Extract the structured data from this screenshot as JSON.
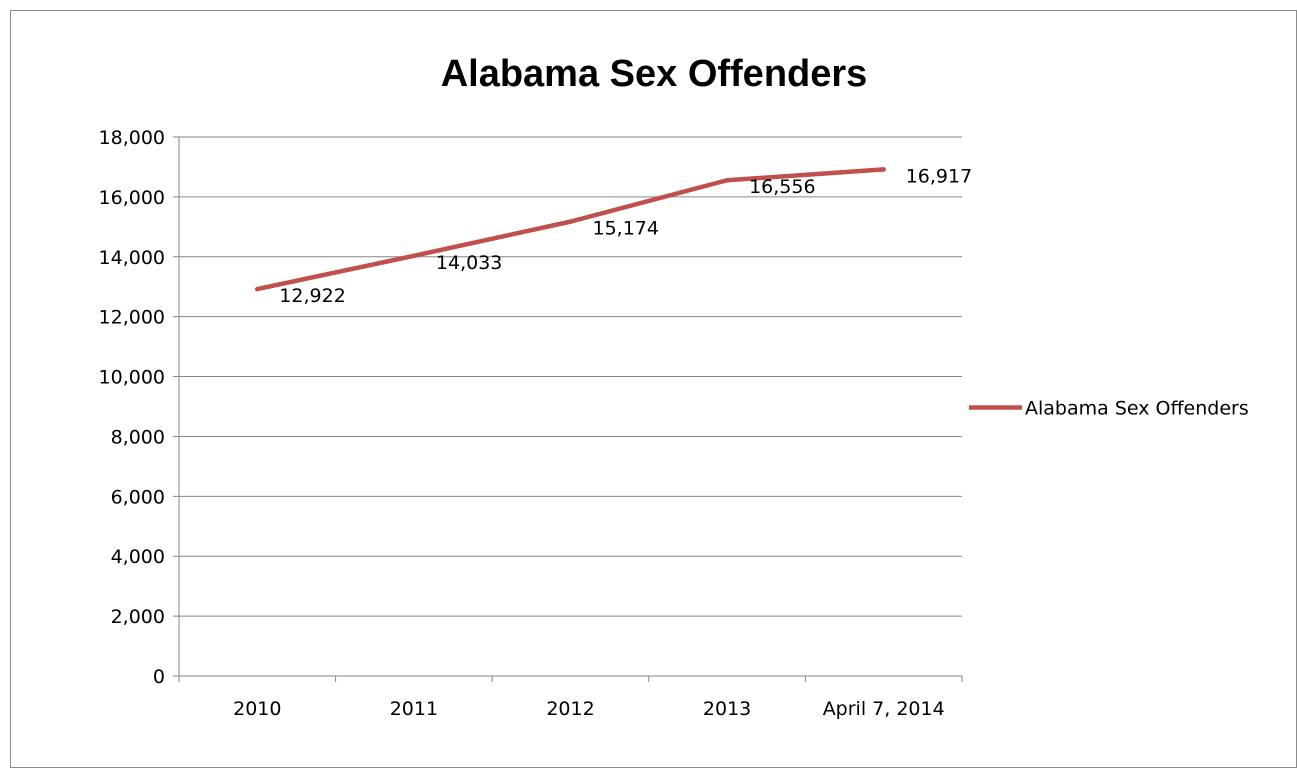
{
  "chart_data": {
    "type": "line",
    "title": "Alabama Sex Offenders",
    "categories": [
      "2010",
      "2011",
      "2012",
      "2013",
      "April 7, 2014"
    ],
    "series": [
      {
        "name": "Alabama Sex Offenders",
        "values": [
          12922,
          14033,
          15174,
          16556,
          16917
        ],
        "data_labels": [
          "12,922",
          "14,033",
          "15,174",
          "16,556",
          "16,917"
        ],
        "color": "#c0504d"
      }
    ],
    "y_ticks": [
      "0",
      "2,000",
      "4,000",
      "6,000",
      "8,000",
      "10,000",
      "12,000",
      "14,000",
      "16,000",
      "18,000"
    ],
    "ylim": [
      0,
      18000
    ],
    "grid": true,
    "legend_position": "right",
    "xlabel": "",
    "ylabel": ""
  }
}
